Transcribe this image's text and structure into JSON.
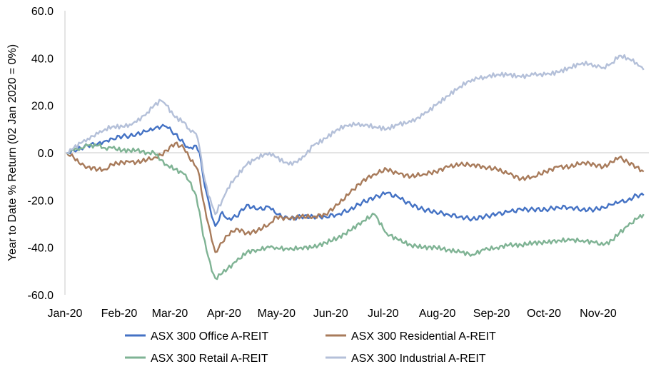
{
  "chart_data": {
    "type": "line",
    "title": "",
    "xlabel": "",
    "ylabel": "Year to Date % Return (02 Jan 2020 = 0%)",
    "ylim": [
      -60,
      60
    ],
    "yticks": [
      "60.0",
      "40.0",
      "20.0",
      "0.0",
      "-20.0",
      "-40.0",
      "-60.0"
    ],
    "ytick_values": [
      60,
      40,
      20,
      0,
      -20,
      -40,
      -60
    ],
    "xticks": [
      "Jan-20",
      "Feb-20",
      "Mar-20",
      "Apr-20",
      "May-20",
      "Jun-20",
      "Jul-20",
      "Aug-20",
      "Sep-20",
      "Oct-20",
      "Nov-20"
    ],
    "xtick_values": [
      "2020-01-01",
      "2020-02-01",
      "2020-03-01",
      "2020-04-01",
      "2020-05-01",
      "2020-06-01",
      "2020-07-01",
      "2020-08-01",
      "2020-09-01",
      "2020-10-01",
      "2020-11-01"
    ],
    "xlim": [
      "2020-01-01",
      "2020-11-30"
    ],
    "grid": "none",
    "legend_placement": "bottom",
    "series": [
      {
        "name": "ASX 300 Office A-REIT",
        "color": "#4472C4",
        "points": [
          [
            "2020-01-02",
            0
          ],
          [
            "2020-01-06",
            1
          ],
          [
            "2020-01-10",
            2
          ],
          [
            "2020-01-14",
            3
          ],
          [
            "2020-01-20",
            4
          ],
          [
            "2020-01-24",
            5
          ],
          [
            "2020-01-28",
            6
          ],
          [
            "2020-02-03",
            7
          ],
          [
            "2020-02-07",
            7
          ],
          [
            "2020-02-11",
            8
          ],
          [
            "2020-02-17",
            9
          ],
          [
            "2020-02-21",
            10
          ],
          [
            "2020-02-25",
            11
          ],
          [
            "2020-02-28",
            11
          ],
          [
            "2020-03-04",
            8
          ],
          [
            "2020-03-09",
            4
          ],
          [
            "2020-03-12",
            2
          ],
          [
            "2020-03-16",
            3
          ],
          [
            "2020-03-18",
            0
          ],
          [
            "2020-03-20",
            -10
          ],
          [
            "2020-03-23",
            -20
          ],
          [
            "2020-03-25",
            -27
          ],
          [
            "2020-03-27",
            -31
          ],
          [
            "2020-03-31",
            -25
          ],
          [
            "2020-04-03",
            -28
          ],
          [
            "2020-04-08",
            -27
          ],
          [
            "2020-04-14",
            -22
          ],
          [
            "2020-04-20",
            -24
          ],
          [
            "2020-04-27",
            -23
          ],
          [
            "2020-05-01",
            -26
          ],
          [
            "2020-05-08",
            -28
          ],
          [
            "2020-05-15",
            -27
          ],
          [
            "2020-05-22",
            -27
          ],
          [
            "2020-05-29",
            -27
          ],
          [
            "2020-06-05",
            -26
          ],
          [
            "2020-06-12",
            -24
          ],
          [
            "2020-06-19",
            -21
          ],
          [
            "2020-06-26",
            -19
          ],
          [
            "2020-07-03",
            -17
          ],
          [
            "2020-07-10",
            -19
          ],
          [
            "2020-07-17",
            -22
          ],
          [
            "2020-07-24",
            -24
          ],
          [
            "2020-07-31",
            -25
          ],
          [
            "2020-08-07",
            -26
          ],
          [
            "2020-08-14",
            -27
          ],
          [
            "2020-08-21",
            -28
          ],
          [
            "2020-08-28",
            -27
          ],
          [
            "2020-09-04",
            -26
          ],
          [
            "2020-09-11",
            -25
          ],
          [
            "2020-09-18",
            -24
          ],
          [
            "2020-09-25",
            -24
          ],
          [
            "2020-10-02",
            -24
          ],
          [
            "2020-10-09",
            -23
          ],
          [
            "2020-10-16",
            -23
          ],
          [
            "2020-10-23",
            -24
          ],
          [
            "2020-10-30",
            -24
          ],
          [
            "2020-11-04",
            -23
          ],
          [
            "2020-11-09",
            -22
          ],
          [
            "2020-11-13",
            -21
          ],
          [
            "2020-11-18",
            -20
          ],
          [
            "2020-11-23",
            -18
          ],
          [
            "2020-11-27",
            -18
          ]
        ]
      },
      {
        "name": "ASX 300 Residential A-REIT",
        "color": "#A87B5B",
        "points": [
          [
            "2020-01-02",
            0
          ],
          [
            "2020-01-06",
            -2
          ],
          [
            "2020-01-10",
            -5
          ],
          [
            "2020-01-14",
            -6
          ],
          [
            "2020-01-20",
            -7
          ],
          [
            "2020-01-24",
            -7
          ],
          [
            "2020-01-28",
            -5
          ],
          [
            "2020-02-03",
            -4
          ],
          [
            "2020-02-07",
            -4
          ],
          [
            "2020-02-11",
            -4
          ],
          [
            "2020-02-17",
            -3
          ],
          [
            "2020-02-21",
            -2
          ],
          [
            "2020-02-25",
            -1
          ],
          [
            "2020-02-28",
            1
          ],
          [
            "2020-03-04",
            4
          ],
          [
            "2020-03-09",
            2
          ],
          [
            "2020-03-12",
            -2
          ],
          [
            "2020-03-16",
            -6
          ],
          [
            "2020-03-18",
            -10
          ],
          [
            "2020-03-20",
            -20
          ],
          [
            "2020-03-23",
            -30
          ],
          [
            "2020-03-25",
            -37
          ],
          [
            "2020-03-27",
            -42
          ],
          [
            "2020-03-31",
            -38
          ],
          [
            "2020-04-03",
            -35
          ],
          [
            "2020-04-08",
            -32
          ],
          [
            "2020-04-14",
            -34
          ],
          [
            "2020-04-20",
            -33
          ],
          [
            "2020-04-27",
            -30
          ],
          [
            "2020-05-01",
            -27
          ],
          [
            "2020-05-08",
            -28
          ],
          [
            "2020-05-15",
            -27
          ],
          [
            "2020-05-22",
            -27
          ],
          [
            "2020-05-29",
            -26
          ],
          [
            "2020-06-05",
            -22
          ],
          [
            "2020-06-12",
            -17
          ],
          [
            "2020-06-19",
            -12
          ],
          [
            "2020-06-26",
            -9
          ],
          [
            "2020-07-03",
            -7
          ],
          [
            "2020-07-10",
            -9
          ],
          [
            "2020-07-17",
            -10
          ],
          [
            "2020-07-24",
            -9
          ],
          [
            "2020-07-31",
            -8
          ],
          [
            "2020-08-07",
            -6
          ],
          [
            "2020-08-14",
            -5
          ],
          [
            "2020-08-21",
            -5
          ],
          [
            "2020-08-28",
            -6
          ],
          [
            "2020-09-04",
            -7
          ],
          [
            "2020-09-11",
            -9
          ],
          [
            "2020-09-18",
            -11
          ],
          [
            "2020-09-25",
            -10
          ],
          [
            "2020-10-02",
            -8
          ],
          [
            "2020-10-09",
            -6
          ],
          [
            "2020-10-16",
            -6
          ],
          [
            "2020-10-23",
            -4
          ],
          [
            "2020-10-30",
            -5
          ],
          [
            "2020-11-04",
            -6
          ],
          [
            "2020-11-09",
            -4
          ],
          [
            "2020-11-13",
            -2
          ],
          [
            "2020-11-18",
            -4
          ],
          [
            "2020-11-23",
            -6
          ],
          [
            "2020-11-27",
            -8
          ]
        ]
      },
      {
        "name": "ASX 300 Retail A-REIT",
        "color": "#7FB394",
        "points": [
          [
            "2020-01-02",
            0
          ],
          [
            "2020-01-06",
            1
          ],
          [
            "2020-01-10",
            2
          ],
          [
            "2020-01-14",
            3
          ],
          [
            "2020-01-20",
            3
          ],
          [
            "2020-01-24",
            2
          ],
          [
            "2020-01-28",
            2
          ],
          [
            "2020-02-03",
            1
          ],
          [
            "2020-02-07",
            1
          ],
          [
            "2020-02-11",
            1
          ],
          [
            "2020-02-17",
            0
          ],
          [
            "2020-02-21",
            0
          ],
          [
            "2020-02-25",
            -3
          ],
          [
            "2020-02-28",
            -5
          ],
          [
            "2020-03-04",
            -7
          ],
          [
            "2020-03-09",
            -9
          ],
          [
            "2020-03-12",
            -12
          ],
          [
            "2020-03-16",
            -18
          ],
          [
            "2020-03-18",
            -25
          ],
          [
            "2020-03-20",
            -35
          ],
          [
            "2020-03-23",
            -44
          ],
          [
            "2020-03-25",
            -50
          ],
          [
            "2020-03-27",
            -53
          ],
          [
            "2020-03-31",
            -51
          ],
          [
            "2020-04-03",
            -49
          ],
          [
            "2020-04-08",
            -46
          ],
          [
            "2020-04-14",
            -42
          ],
          [
            "2020-04-20",
            -41
          ],
          [
            "2020-04-27",
            -40
          ],
          [
            "2020-05-01",
            -40
          ],
          [
            "2020-05-08",
            -41
          ],
          [
            "2020-05-15",
            -40
          ],
          [
            "2020-05-22",
            -40
          ],
          [
            "2020-05-29",
            -38
          ],
          [
            "2020-06-05",
            -36
          ],
          [
            "2020-06-12",
            -33
          ],
          [
            "2020-06-19",
            -29
          ],
          [
            "2020-06-26",
            -26
          ],
          [
            "2020-07-03",
            -34
          ],
          [
            "2020-07-10",
            -37
          ],
          [
            "2020-07-17",
            -39
          ],
          [
            "2020-07-24",
            -40
          ],
          [
            "2020-07-31",
            -40
          ],
          [
            "2020-08-07",
            -41
          ],
          [
            "2020-08-14",
            -42
          ],
          [
            "2020-08-21",
            -43
          ],
          [
            "2020-08-28",
            -41
          ],
          [
            "2020-09-04",
            -40
          ],
          [
            "2020-09-11",
            -39
          ],
          [
            "2020-09-18",
            -39
          ],
          [
            "2020-09-25",
            -38
          ],
          [
            "2020-10-02",
            -38
          ],
          [
            "2020-10-09",
            -37
          ],
          [
            "2020-10-16",
            -37
          ],
          [
            "2020-10-23",
            -37
          ],
          [
            "2020-10-30",
            -38
          ],
          [
            "2020-11-04",
            -39
          ],
          [
            "2020-11-09",
            -37
          ],
          [
            "2020-11-13",
            -34
          ],
          [
            "2020-11-18",
            -31
          ],
          [
            "2020-11-23",
            -28
          ],
          [
            "2020-11-27",
            -26
          ]
        ]
      },
      {
        "name": "ASX 300 Industrial A-REIT",
        "color": "#B4C0D9",
        "points": [
          [
            "2020-01-02",
            0
          ],
          [
            "2020-01-06",
            2
          ],
          [
            "2020-01-10",
            4
          ],
          [
            "2020-01-14",
            6
          ],
          [
            "2020-01-20",
            8
          ],
          [
            "2020-01-24",
            10
          ],
          [
            "2020-01-28",
            11
          ],
          [
            "2020-02-03",
            11
          ],
          [
            "2020-02-07",
            12
          ],
          [
            "2020-02-11",
            13
          ],
          [
            "2020-02-17",
            17
          ],
          [
            "2020-02-21",
            20
          ],
          [
            "2020-02-25",
            22
          ],
          [
            "2020-02-28",
            20
          ],
          [
            "2020-03-04",
            15
          ],
          [
            "2020-03-09",
            13
          ],
          [
            "2020-03-12",
            10
          ],
          [
            "2020-03-16",
            8
          ],
          [
            "2020-03-18",
            2
          ],
          [
            "2020-03-20",
            -8
          ],
          [
            "2020-03-23",
            -18
          ],
          [
            "2020-03-25",
            -22
          ],
          [
            "2020-03-27",
            -26
          ],
          [
            "2020-03-31",
            -20
          ],
          [
            "2020-04-03",
            -15
          ],
          [
            "2020-04-08",
            -10
          ],
          [
            "2020-04-14",
            -5
          ],
          [
            "2020-04-20",
            -2
          ],
          [
            "2020-04-27",
            0
          ],
          [
            "2020-05-01",
            -2
          ],
          [
            "2020-05-08",
            -5
          ],
          [
            "2020-05-15",
            -3
          ],
          [
            "2020-05-22",
            3
          ],
          [
            "2020-05-29",
            6
          ],
          [
            "2020-06-05",
            10
          ],
          [
            "2020-06-12",
            12
          ],
          [
            "2020-06-19",
            12
          ],
          [
            "2020-06-26",
            11
          ],
          [
            "2020-07-03",
            10
          ],
          [
            "2020-07-10",
            12
          ],
          [
            "2020-07-17",
            13
          ],
          [
            "2020-07-24",
            16
          ],
          [
            "2020-07-31",
            20
          ],
          [
            "2020-08-07",
            24
          ],
          [
            "2020-08-14",
            28
          ],
          [
            "2020-08-21",
            31
          ],
          [
            "2020-08-28",
            32
          ],
          [
            "2020-09-04",
            33
          ],
          [
            "2020-09-11",
            33
          ],
          [
            "2020-09-18",
            32
          ],
          [
            "2020-09-25",
            33
          ],
          [
            "2020-10-02",
            33
          ],
          [
            "2020-10-09",
            34
          ],
          [
            "2020-10-16",
            36
          ],
          [
            "2020-10-23",
            38
          ],
          [
            "2020-10-30",
            37
          ],
          [
            "2020-11-04",
            36
          ],
          [
            "2020-11-09",
            38
          ],
          [
            "2020-11-13",
            41
          ],
          [
            "2020-11-18",
            40
          ],
          [
            "2020-11-23",
            38
          ],
          [
            "2020-11-27",
            35
          ]
        ]
      }
    ]
  }
}
